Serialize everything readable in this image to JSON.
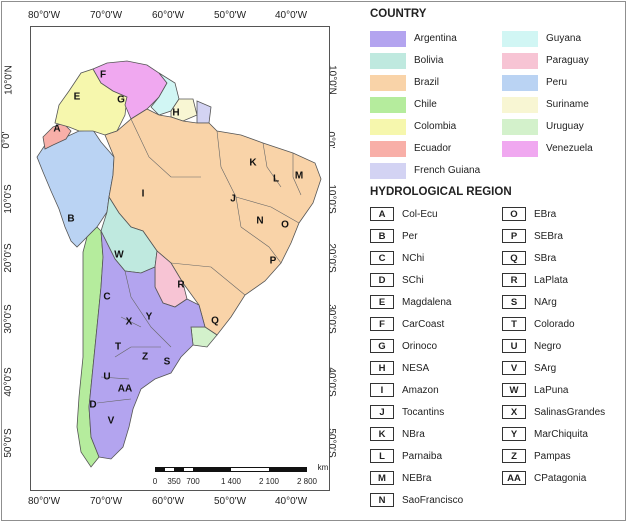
{
  "coords": {
    "top": [
      "80°0'W",
      "70°0'W",
      "60°0'W",
      "50°0'W",
      "40°0'W"
    ],
    "bottom": [
      "80°0'W",
      "70°0'W",
      "60°0'W",
      "50°0'W",
      "40°0'W"
    ],
    "left": [
      "10°0'N",
      "0°0'",
      "10°0'S",
      "20°0'S",
      "30°0'S",
      "40°0'S",
      "50°0'S"
    ],
    "right": [
      "10°0'N",
      "0°0'",
      "10°0'S",
      "20°0'S",
      "30°0'S",
      "40°0'S",
      "50°0'S"
    ]
  },
  "legend": {
    "country_title": "COUNTRY",
    "countries": [
      {
        "name": "Argentina",
        "color": "#b3a4ef"
      },
      {
        "name": "Bolivia",
        "color": "#bfe9df"
      },
      {
        "name": "Brazil",
        "color": "#f9d3a8"
      },
      {
        "name": "Chile",
        "color": "#b5ec9d"
      },
      {
        "name": "Colombia",
        "color": "#f6f7ad"
      },
      {
        "name": "Ecuador",
        "color": "#f8afa8"
      },
      {
        "name": "French Guiana",
        "color": "#d3d3f3"
      },
      {
        "name": "Guyana",
        "color": "#d1f6f4"
      },
      {
        "name": "Paraguay",
        "color": "#f7c4d4"
      },
      {
        "name": "Peru",
        "color": "#bad3f3"
      },
      {
        "name": "Suriname",
        "color": "#f8f6d3"
      },
      {
        "name": "Uruguay",
        "color": "#d3f1cb"
      },
      {
        "name": "Venezuela",
        "color": "#f0a8f0"
      }
    ],
    "hydro_title": "HYDROLOGICAL REGION",
    "regions": [
      {
        "code": "A",
        "name": "Col-Ecu"
      },
      {
        "code": "B",
        "name": "Per"
      },
      {
        "code": "C",
        "name": "NChi"
      },
      {
        "code": "D",
        "name": "SChi"
      },
      {
        "code": "E",
        "name": "Magdalena"
      },
      {
        "code": "F",
        "name": "CarCoast"
      },
      {
        "code": "G",
        "name": "Orinoco"
      },
      {
        "code": "H",
        "name": "NESA"
      },
      {
        "code": "I",
        "name": "Amazon"
      },
      {
        "code": "J",
        "name": "Tocantins"
      },
      {
        "code": "K",
        "name": "NBra"
      },
      {
        "code": "L",
        "name": "Parnaiba"
      },
      {
        "code": "M",
        "name": "NEBra"
      },
      {
        "code": "N",
        "name": "SaoFrancisco"
      },
      {
        "code": "O",
        "name": "EBra"
      },
      {
        "code": "P",
        "name": "SEBra"
      },
      {
        "code": "Q",
        "name": "SBra"
      },
      {
        "code": "R",
        "name": "LaPlata"
      },
      {
        "code": "S",
        "name": "NArg"
      },
      {
        "code": "T",
        "name": "Colorado"
      },
      {
        "code": "U",
        "name": "Negro"
      },
      {
        "code": "V",
        "name": "SArg"
      },
      {
        "code": "W",
        "name": "LaPuna"
      },
      {
        "code": "X",
        "name": "SalinasGrandes"
      },
      {
        "code": "Y",
        "name": "MarChiquita"
      },
      {
        "code": "Z",
        "name": "Pampas"
      },
      {
        "code": "AA",
        "name": "CPatagonia"
      }
    ]
  },
  "map_labels": [
    "A",
    "B",
    "C",
    "D",
    "E",
    "F",
    "G",
    "H",
    "I",
    "J",
    "K",
    "L",
    "M",
    "N",
    "O",
    "P",
    "Q",
    "R",
    "S",
    "T",
    "U",
    "AA",
    "V",
    "W",
    "X",
    "Y",
    "Z"
  ],
  "scale": {
    "unit": "km",
    "ticks": [
      "0",
      "350",
      "700",
      "1 400",
      "2 100",
      "2 800"
    ]
  }
}
